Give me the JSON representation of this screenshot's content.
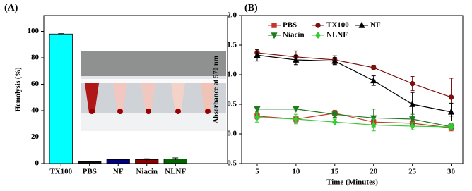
{
  "chart_data": [
    {
      "type": "bar",
      "panel_label": "(A)",
      "y_label": "Hemolysis (%)",
      "categories": [
        "TX100",
        "PBS",
        "NF",
        "Niacin",
        "NLNF"
      ],
      "values": [
        98,
        1.5,
        3,
        3,
        3.5
      ],
      "errors": [
        0.3,
        0.3,
        0.4,
        0.6,
        0.8
      ],
      "colors": [
        "#00ffff",
        "#111111",
        "#000080",
        "#8b0000",
        "#006400"
      ],
      "ylim": [
        0,
        112
      ],
      "yticks": [
        0,
        20,
        40,
        60,
        80,
        100
      ]
    },
    {
      "type": "line",
      "panel_label": "(B)",
      "x_label": "Time (Minutes)",
      "y_label": "Absorbance at 570 nm",
      "x": [
        5,
        10,
        15,
        20,
        25,
        30
      ],
      "xlim": [
        3,
        31.5
      ],
      "xticks": [
        5,
        10,
        15,
        20,
        25,
        30
      ],
      "ylim": [
        -0.5,
        2.0
      ],
      "yticks": [
        -0.5,
        0.0,
        0.5,
        1.0,
        1.5,
        2.0
      ],
      "series": [
        {
          "name": "PBS",
          "color": "#c0392b",
          "marker": "square",
          "values": [
            0.3,
            0.25,
            0.35,
            0.2,
            0.18,
            0.1
          ],
          "errors": [
            0.05,
            0.05,
            0.05,
            0.05,
            0.05,
            0.05
          ]
        },
        {
          "name": "TX100",
          "color": "#7b1010",
          "marker": "circle",
          "values": [
            1.37,
            1.3,
            1.25,
            1.12,
            0.85,
            0.62
          ],
          "errors": [
            0.05,
            0.1,
            0.07,
            0.04,
            0.12,
            0.32
          ]
        },
        {
          "name": "NF",
          "color": "#000000",
          "marker": "triangle-up",
          "values": [
            1.33,
            1.25,
            1.23,
            0.9,
            0.5,
            0.37
          ],
          "errors": [
            0.1,
            0.08,
            0.06,
            0.08,
            0.2,
            0.15
          ]
        },
        {
          "name": "Niacin",
          "color": "#1e7b1e",
          "marker": "triangle-down",
          "values": [
            0.42,
            0.42,
            0.33,
            0.27,
            0.25,
            0.12
          ],
          "errors": [
            0.05,
            0.03,
            0.05,
            0.15,
            0.08,
            0.05
          ]
        },
        {
          "name": "NLNF",
          "color": "#33cc33",
          "marker": "diamond",
          "values": [
            0.28,
            0.25,
            0.2,
            0.15,
            0.13,
            0.12
          ],
          "errors": [
            0.08,
            0.08,
            0.05,
            0.1,
            0.06,
            0.04
          ]
        }
      ]
    }
  ]
}
